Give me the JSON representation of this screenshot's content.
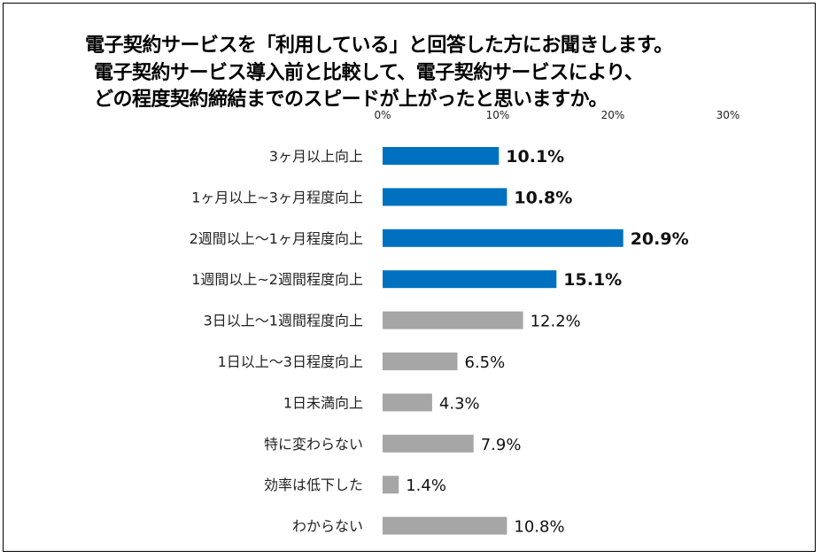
{
  "title_lines": [
    "電子契約サービスを「利用している」と回答した方にお聞きします。",
    "電子契約サービス導入前と比較して、電子契約サービスにより、",
    "どの程度契約締結までのスピードが上がったと思いますか。"
  ],
  "colors": {
    "highlight": "#0070C0",
    "normal": "#A6A6A6"
  },
  "chart_data": {
    "type": "bar",
    "orientation": "horizontal",
    "title": "電子契約サービスを「利用している」と回答した方にお聞きします。 電子契約サービス導入前と比較して、電子契約サービスにより、 どの程度契約締結までのスピードが上がったと思いますか。",
    "xlim": [
      0,
      30
    ],
    "ticks": [
      "0%",
      "10%",
      "20%",
      "30%"
    ],
    "tick_values": [
      0,
      10,
      20,
      30
    ],
    "categories": [
      "3ヶ月以上向上",
      "1ヶ月以上~3ヶ月程度向上",
      "2週間以上～1ヶ月程度向上",
      "1週間以上~2週間程度向上",
      "3日以上～1週間程度向上",
      "1日以上～3日程度向上",
      "1日未満向上",
      "特に変わらない",
      "効率は低下した",
      "わからない"
    ],
    "values": [
      10.1,
      10.8,
      20.9,
      15.1,
      12.2,
      6.5,
      4.3,
      7.9,
      1.4,
      10.8
    ],
    "value_labels": [
      "10.1%",
      "10.8%",
      "20.9%",
      "15.1%",
      "12.2%",
      "6.5%",
      "4.3%",
      "7.9%",
      "1.4%",
      "10.8%"
    ],
    "highlighted": [
      true,
      true,
      true,
      true,
      false,
      false,
      false,
      false,
      false,
      false
    ],
    "grid": false,
    "legend": "none"
  }
}
